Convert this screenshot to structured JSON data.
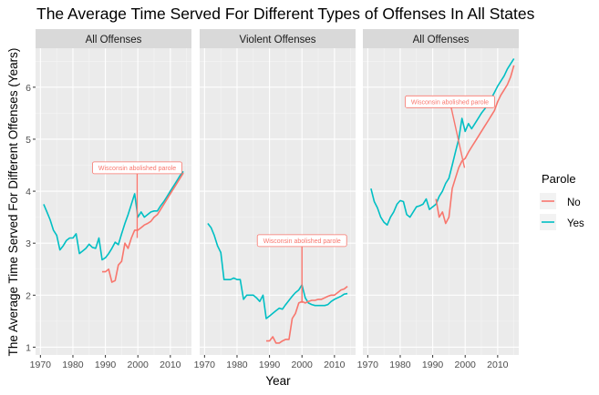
{
  "chart_data": {
    "type": "line",
    "title": "The Average Time Served For Different Types of Offenses In All States",
    "xlabel": "Year",
    "ylabel": "The Average Time Served For Different Offenses (Years)",
    "xlim": [
      1968.5,
      2016.5
    ],
    "ylim": [
      0.85,
      6.75
    ],
    "x_ticks": [
      1970,
      1980,
      1990,
      2000,
      2010
    ],
    "y_ticks": [
      1,
      2,
      3,
      4,
      5,
      6
    ],
    "grid": true,
    "legend": {
      "title": "Parole",
      "position": "right",
      "entries": [
        {
          "label": "No",
          "color": "#F8766D"
        },
        {
          "label": "Yes",
          "color": "#00BFC4"
        }
      ]
    },
    "annotation_color": "#F8766D",
    "panels": [
      {
        "strip": "All Offenses",
        "annotation": {
          "text": "Wisconsin abolished parole",
          "x": 1999.8,
          "y": 4.45,
          "point": {
            "x": 1999.8,
            "y": 3.1
          }
        },
        "series": [
          {
            "name": "Yes",
            "color": "#00BFC4",
            "x": [
              1971,
              1972,
              1973,
              1974,
              1975,
              1976,
              1977,
              1978,
              1979,
              1980,
              1981,
              1982,
              1983,
              1984,
              1985,
              1986,
              1987,
              1988,
              1989,
              1990,
              1991,
              1992,
              1993,
              1994,
              1995,
              1996,
              1997,
              1998,
              1999,
              2000,
              2001,
              2002,
              2003,
              2004,
              2005,
              2006,
              2007,
              2008,
              2009,
              2010,
              2011,
              2012,
              2013,
              2014
            ],
            "y": [
              3.75,
              3.6,
              3.45,
              3.25,
              3.15,
              2.87,
              2.95,
              3.05,
              3.1,
              3.1,
              3.18,
              2.8,
              2.85,
              2.9,
              2.98,
              2.92,
              2.9,
              3.1,
              2.68,
              2.72,
              2.8,
              2.9,
              3.02,
              2.97,
              3.18,
              3.38,
              3.55,
              3.75,
              3.95,
              3.5,
              3.6,
              3.5,
              3.55,
              3.6,
              3.62,
              3.62,
              3.72,
              3.8,
              3.9,
              4.0,
              4.1,
              4.2,
              4.3,
              4.38
            ]
          },
          {
            "name": "No",
            "color": "#F8766D",
            "x": [
              1989,
              1990,
              1991,
              1992,
              1993,
              1994,
              1995,
              1996,
              1997,
              1998,
              1999,
              2000,
              2001,
              2002,
              2003,
              2004,
              2005,
              2006,
              2007,
              2008,
              2009,
              2010,
              2011,
              2012,
              2013,
              2014
            ],
            "y": [
              2.45,
              2.45,
              2.5,
              2.25,
              2.28,
              2.58,
              2.65,
              3.0,
              2.9,
              3.1,
              3.25,
              3.25,
              3.3,
              3.35,
              3.38,
              3.42,
              3.5,
              3.55,
              3.65,
              3.75,
              3.85,
              3.95,
              4.05,
              4.15,
              4.25,
              4.35
            ]
          }
        ]
      },
      {
        "strip": "Violent Offenses",
        "annotation": {
          "text": "Wisconsin abolished parole",
          "x": 2000,
          "y": 3.05,
          "point": {
            "x": 2000,
            "y": 1.85
          }
        },
        "series": [
          {
            "name": "Yes",
            "color": "#00BFC4",
            "x": [
              1971,
              1972,
              1973,
              1974,
              1975,
              1976,
              1977,
              1978,
              1979,
              1980,
              1981,
              1982,
              1983,
              1984,
              1985,
              1986,
              1987,
              1988,
              1989,
              1990,
              1991,
              1992,
              1993,
              1994,
              1995,
              1996,
              1997,
              1998,
              1999,
              2000,
              2001,
              2002,
              2003,
              2004,
              2005,
              2006,
              2007,
              2008,
              2009,
              2010,
              2011,
              2012,
              2013,
              2014
            ],
            "y": [
              3.38,
              3.3,
              3.15,
              2.95,
              2.82,
              2.3,
              2.3,
              2.3,
              2.33,
              2.3,
              2.3,
              1.92,
              2.0,
              2.0,
              2.0,
              1.95,
              1.88,
              2.0,
              1.55,
              1.6,
              1.65,
              1.7,
              1.75,
              1.73,
              1.82,
              1.9,
              1.98,
              2.05,
              2.1,
              2.2,
              1.95,
              1.85,
              1.82,
              1.8,
              1.8,
              1.8,
              1.8,
              1.82,
              1.88,
              1.92,
              1.95,
              1.98,
              2.02,
              2.03
            ]
          },
          {
            "name": "No",
            "color": "#F8766D",
            "x": [
              1989,
              1990,
              1991,
              1992,
              1993,
              1994,
              1995,
              1996,
              1997,
              1998,
              1999,
              2000,
              2001,
              2002,
              2003,
              2004,
              2005,
              2006,
              2007,
              2008,
              2009,
              2010,
              2011,
              2012,
              2013,
              2014
            ],
            "y": [
              1.12,
              1.12,
              1.2,
              1.08,
              1.08,
              1.12,
              1.15,
              1.15,
              1.55,
              1.65,
              1.85,
              1.88,
              1.85,
              1.88,
              1.9,
              1.9,
              1.92,
              1.92,
              1.95,
              1.98,
              2.0,
              2.0,
              2.05,
              2.1,
              2.12,
              2.17
            ]
          }
        ]
      },
      {
        "strip": "All Offenses",
        "annotation": {
          "text": "Wisconsin abolished parole",
          "x": 1995.3,
          "y": 5.72,
          "point": {
            "x": 1999.8,
            "y": 4.45
          }
        },
        "series": [
          {
            "name": "Yes",
            "color": "#00BFC4",
            "x": [
              1971,
              1972,
              1973,
              1974,
              1975,
              1976,
              1977,
              1978,
              1979,
              1980,
              1981,
              1982,
              1983,
              1984,
              1985,
              1986,
              1987,
              1988,
              1989,
              1990,
              1991,
              1992,
              1993,
              1994,
              1995,
              1996,
              1997,
              1998,
              1999,
              2000,
              2001,
              2002,
              2003,
              2004,
              2005,
              2006,
              2007,
              2008,
              2009,
              2010,
              2011,
              2012,
              2013,
              2014,
              2015
            ],
            "y": [
              4.05,
              3.8,
              3.68,
              3.5,
              3.4,
              3.35,
              3.5,
              3.6,
              3.75,
              3.82,
              3.8,
              3.55,
              3.5,
              3.6,
              3.7,
              3.72,
              3.75,
              3.85,
              3.65,
              3.7,
              3.75,
              3.9,
              4.0,
              4.15,
              4.25,
              4.5,
              4.75,
              5.0,
              5.4,
              5.15,
              5.3,
              5.2,
              5.3,
              5.4,
              5.5,
              5.58,
              5.68,
              5.78,
              5.9,
              6.02,
              6.12,
              6.22,
              6.35,
              6.45,
              6.55
            ]
          },
          {
            "name": "No",
            "color": "#F8766D",
            "x": [
              1991,
              1992,
              1993,
              1994,
              1995,
              1996,
              1997,
              1998,
              1999,
              2000,
              2001,
              2002,
              2003,
              2004,
              2005,
              2006,
              2007,
              2008,
              2009,
              2010,
              2011,
              2012,
              2013,
              2014,
              2015
            ],
            "y": [
              3.85,
              3.5,
              3.6,
              3.38,
              3.5,
              4.05,
              4.25,
              4.45,
              4.58,
              4.63,
              4.75,
              4.85,
              4.95,
              5.05,
              5.15,
              5.25,
              5.35,
              5.45,
              5.55,
              5.72,
              5.85,
              5.95,
              6.05,
              6.2,
              6.42
            ]
          }
        ]
      }
    ]
  }
}
